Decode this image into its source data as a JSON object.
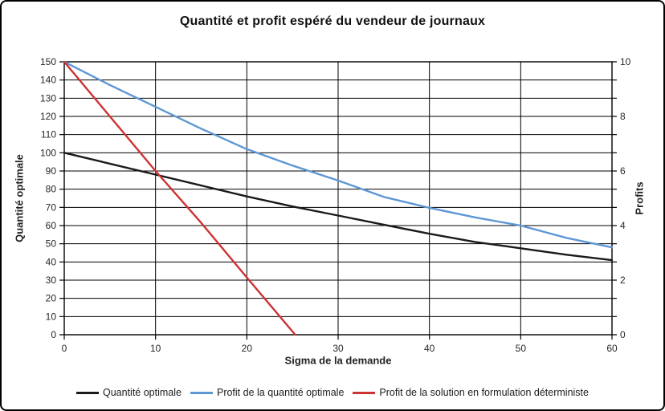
{
  "chart_data": {
    "type": "line",
    "title": "Quantité et profit espéré du vendeur de journaux",
    "xlabel": "Sigma de la demande",
    "ylabel_left": "Quantité optimale",
    "ylabel_right": "Profits",
    "xlim": [
      0,
      60
    ],
    "ylim_left": [
      0,
      150
    ],
    "ylim_right": [
      0,
      10
    ],
    "x_ticks": [
      0,
      10,
      20,
      30,
      40,
      50,
      60
    ],
    "y_left_ticks": [
      0,
      10,
      20,
      30,
      40,
      50,
      60,
      70,
      80,
      90,
      100,
      110,
      120,
      130,
      140,
      150
    ],
    "y_right_ticks": [
      0,
      2,
      4,
      6,
      8,
      10
    ],
    "grid": true,
    "legend_position": "bottom",
    "series": [
      {
        "name": "Quantité optimale",
        "axis": "left",
        "color": "#1a1a1a",
        "x": [
          0,
          5,
          10,
          15,
          20,
          25,
          30,
          35,
          40,
          45,
          50,
          55,
          60
        ],
        "y": [
          100,
          94,
          88,
          82,
          76,
          70.5,
          65.5,
          60.5,
          55.5,
          51,
          47.5,
          44,
          41
        ]
      },
      {
        "name": "Profit de la quantité optimale",
        "axis": "right",
        "color": "#5e97d4",
        "x": [
          0,
          5,
          10,
          15,
          20,
          25,
          30,
          35,
          40,
          45,
          50,
          55,
          60
        ],
        "y": [
          10,
          9.15,
          8.35,
          7.55,
          6.8,
          6.2,
          5.65,
          5.05,
          4.65,
          4.3,
          4.0,
          3.55,
          3.2
        ]
      },
      {
        "name": "Profit de la solution en formulation déterministe",
        "axis": "right",
        "color": "#cc3333",
        "x": [
          0,
          5,
          10,
          15,
          20,
          25.3
        ],
        "y": [
          10,
          8.0,
          6.0,
          4.1,
          2.1,
          0
        ]
      }
    ]
  }
}
